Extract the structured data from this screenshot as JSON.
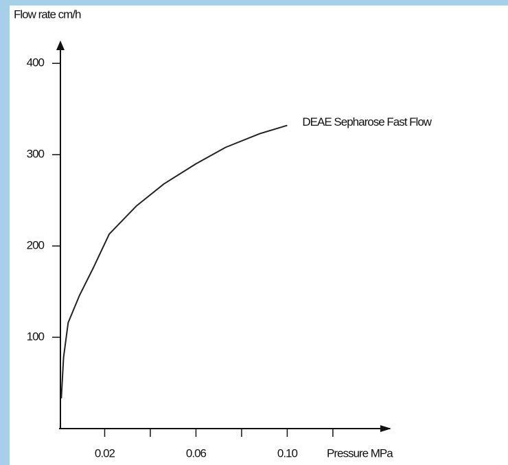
{
  "chart_data": {
    "type": "line",
    "y_label": "Flow rate cm/h",
    "x_label": "Pressure MPa",
    "series": [
      {
        "name": "DEAE Sepharose Fast Flow",
        "color": "#222222",
        "x": [
          0.001,
          0.002,
          0.004,
          0.009,
          0.015,
          0.022,
          0.034,
          0.046,
          0.06,
          0.073,
          0.088,
          0.1
        ],
        "values": [
          33,
          78,
          116,
          146,
          176,
          213,
          244,
          268,
          290,
          308,
          323,
          332
        ]
      }
    ],
    "xlim": [
      0,
      0.145
    ],
    "ylim": [
      0,
      425
    ],
    "xticks": [
      0.02,
      0.06,
      {
        "value": 0.1,
        "label": "0.10"
      }
    ],
    "xminor_ticks": [
      0.04,
      0.08,
      0.12
    ],
    "yticks": [
      100,
      200,
      300,
      400
    ]
  }
}
